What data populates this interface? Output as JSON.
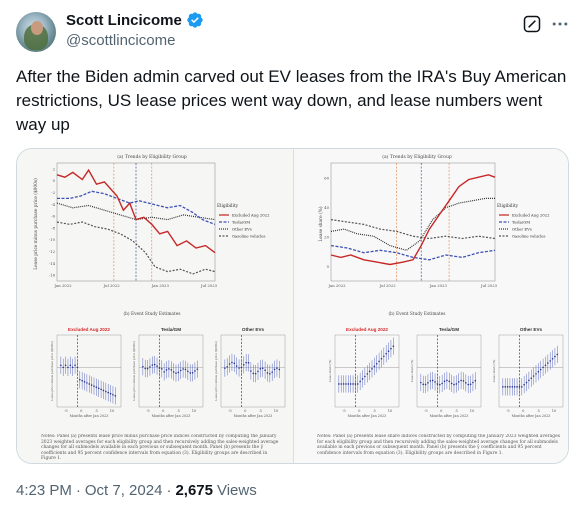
{
  "author": {
    "name": "Scott Lincicome",
    "handle": "@scottlincicome",
    "verified_color": "#1d9bf0"
  },
  "tweet": {
    "text": "After the Biden admin carved out EV leases from the IRA's Buy American restrictions, US lease prices went way down, and lease numbers went way up"
  },
  "meta": {
    "time": "4:23 PM",
    "separator": "·",
    "date": "Oct 7, 2024",
    "views_count": "2,675",
    "views_label": "Views"
  },
  "figure": {
    "left": {
      "panel_a_title": "(a) Trends by Eligibility Group",
      "ylabel": "Lease price minus purchase price ($000s)",
      "y_ticks": [
        "2",
        "0",
        "-2",
        "-4",
        "-6",
        "-8",
        "-10",
        "-12",
        "-14",
        "-16"
      ],
      "x_ticks": [
        "Jan 2022",
        "Jul 2022",
        "Jan 2023",
        "Jul 2023"
      ],
      "legend_title": "Eligibility",
      "legend": [
        "Excluded Aug 2022",
        "Tesla/GM",
        "Other EVs",
        "Gasoline vehicles"
      ],
      "panel_b_title": "(b) Event Study Estimates",
      "subplots": [
        {
          "title": "Excluded Aug 2022",
          "color": "#d62728"
        },
        {
          "title": "Tesla/GM",
          "color": "#333333"
        },
        {
          "title": "Other EVs",
          "color": "#333333"
        }
      ],
      "sub_x_ticks": [
        "-5",
        "0",
        "5",
        "10"
      ],
      "sub_xlabel": "Months after Jan 2023",
      "sub_ylabel": "Lease price minus purchase price ($000s)",
      "note": "Notes: Panel (a) presents lease price minus purchase price indices constructed by computing the January 2023 weighted averages for each eligibility group and then recursively adding the sales-weighted average changes for all submodels available in each previous or subsequent month. Panel (b) presents the γ̂ coefficients and 95 percent confidence intervals from equation (3). Eligibility groups are described in Figure 1."
    },
    "right": {
      "panel_a_title": "(a) Trends by Eligibility Group",
      "ylabel": "Lease share (%)",
      "y_ticks": [
        "60",
        "40",
        "20",
        "0"
      ],
      "x_ticks": [
        "Jan 2022",
        "Jul 2022",
        "Jan 2023",
        "Jul 2023"
      ],
      "legend_title": "Eligibility",
      "legend": [
        "Excluded Aug 2022",
        "Tesla/GM",
        "Other EVs",
        "Gasoline vehicles"
      ],
      "panel_b_title": "(b) Event Study Estimates",
      "subplots": [
        {
          "title": "Excluded Aug 2022",
          "color": "#d62728"
        },
        {
          "title": "Tesla/GM",
          "color": "#333333"
        },
        {
          "title": "Other EVs",
          "color": "#333333"
        }
      ],
      "sub_x_ticks": [
        "-5",
        "0",
        "5",
        "10"
      ],
      "sub_xlabel": "Months after Jan 2023",
      "sub_ylabel": "Lease share (%)",
      "note": "Notes: Panel (a) presents lease share indices constructed by computing the January 2023 weighted averages for each eligibility group and then recursively adding the sales-weighted average changes for all submodels available in each previous or subsequent month. Panel (b) presents the γ̂ coefficients and 95 percent confidence intervals from equation (3). Eligibility groups are described in Figure 1."
    },
    "colors": {
      "excluded": "#c62828",
      "tesla": "#3f51b5",
      "other": "#333333",
      "gas": "#555555"
    }
  }
}
